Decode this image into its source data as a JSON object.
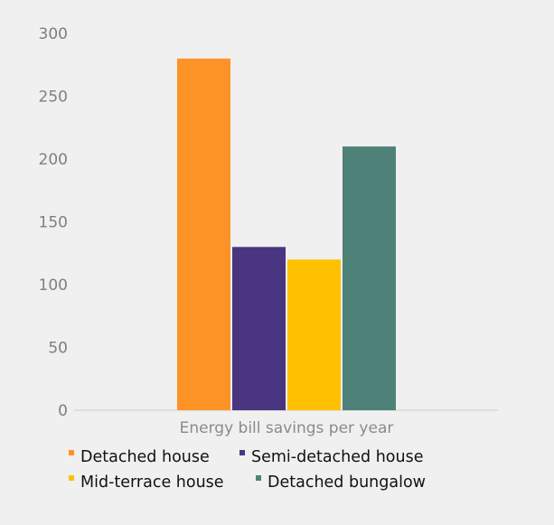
{
  "chart_data": {
    "type": "bar",
    "title": "",
    "xlabel": "",
    "ylabel": "",
    "categories": [
      "Energy bill savings per year"
    ],
    "series": [
      {
        "name": "Detached house",
        "values": [
          280
        ],
        "color": "#fd9226"
      },
      {
        "name": "Semi-detached house",
        "values": [
          130
        ],
        "color": "#4a3580"
      },
      {
        "name": "Mid-terrace house",
        "values": [
          120
        ],
        "color": "#ffc000"
      },
      {
        "name": "Detached bungalow",
        "values": [
          210
        ],
        "color": "#4e8178"
      }
    ],
    "ylim": [
      0,
      300
    ],
    "yticks": [
      "0",
      "50",
      "100",
      "150",
      "200",
      "250",
      "300"
    ],
    "grid": false,
    "legend_position": "bottom"
  }
}
